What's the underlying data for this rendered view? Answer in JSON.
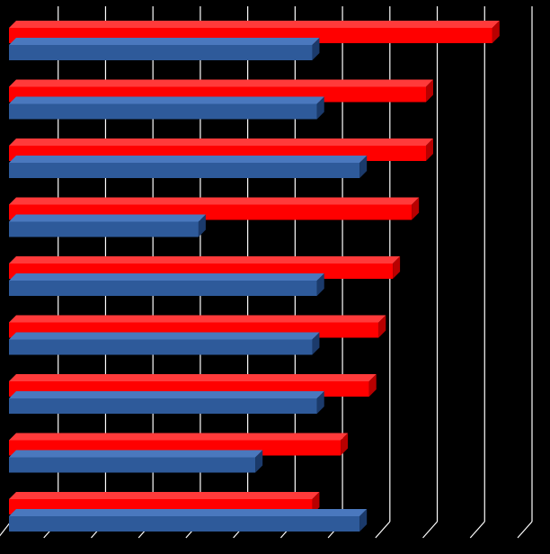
{
  "chart_data": {
    "type": "bar",
    "orientation": "horizontal",
    "style": "3d",
    "grid": true,
    "legend": "none",
    "xlim": [
      0,
      11
    ],
    "categories": [
      "",
      "",
      "",
      "",
      "",
      "",
      "",
      "",
      ""
    ],
    "series": [
      {
        "color": "#FF0000",
        "values": [
          10.2,
          8.8,
          8.8,
          8.5,
          8.1,
          7.8,
          7.6,
          7.0,
          6.4
        ]
      },
      {
        "color": "#2E5A9A",
        "values": [
          6.4,
          6.5,
          7.4,
          4.0,
          6.5,
          6.4,
          6.5,
          5.2,
          7.4
        ]
      }
    ],
    "title": "",
    "xlabel": "",
    "ylabel": ""
  },
  "colors": {
    "background": "#000000",
    "grid": "#FFFFFF",
    "series_1_top": "#FF3A3A",
    "series_1_side": "#B80000",
    "series_2_top": "#4A78BE",
    "series_2_side": "#1B3A6B"
  }
}
